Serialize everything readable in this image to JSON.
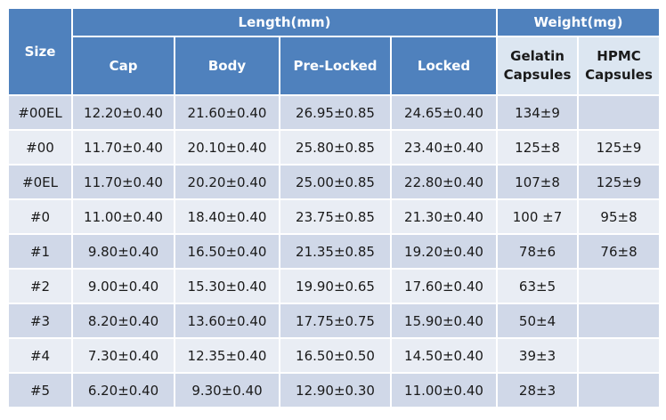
{
  "table": {
    "header": {
      "size": "Size",
      "length": "Length(mm)",
      "weight": "Weight(mg)",
      "columns": [
        "Cap",
        "Body",
        "Pre-Locked",
        "Locked",
        "Gelatin Capsules",
        "HPMC Capsules"
      ]
    },
    "rows": [
      [
        "#00EL",
        "12.20±0.40",
        "21.60±0.40",
        "26.95±0.85",
        "24.65±0.40",
        "134±9"
      ],
      [
        "#00",
        "11.70±0.40",
        "20.10±0.40",
        "25.80±0.85",
        "23.40±0.40",
        "125±8",
        "125±9"
      ],
      [
        "#0EL",
        "11.70±0.40",
        "20.20±0.40",
        "25.00±0.85",
        "22.80±0.40",
        "107±8",
        "125±9"
      ],
      [
        "#0",
        "11.00±0.40",
        "18.40±0.40",
        "23.75±0.85",
        "21.30±0.40",
        "100 ±7",
        "95±8"
      ],
      [
        "#1",
        "9.80±0.40",
        "16.50±0.40",
        "21.35±0.85",
        "19.20±0.40",
        "78±6",
        "76±8"
      ],
      [
        "#2",
        "9.00±0.40",
        "15.30±0.40",
        "19.90±0.65",
        "17.60±0.40",
        "63±5"
      ],
      [
        "#3",
        "8.20±0.40",
        "13.60±0.40",
        "17.75±0.75",
        "15.90±0.40",
        "50±4"
      ],
      [
        "#4",
        "7.30±0.40",
        "12.35±0.40",
        "16.50±0.50",
        "14.50±0.40",
        "39±3"
      ],
      [
        "#5",
        "6.20±0.40",
        "9.30±0.40",
        "12.90±0.30",
        "11.00±0.40",
        "28±3"
      ]
    ]
  }
}
